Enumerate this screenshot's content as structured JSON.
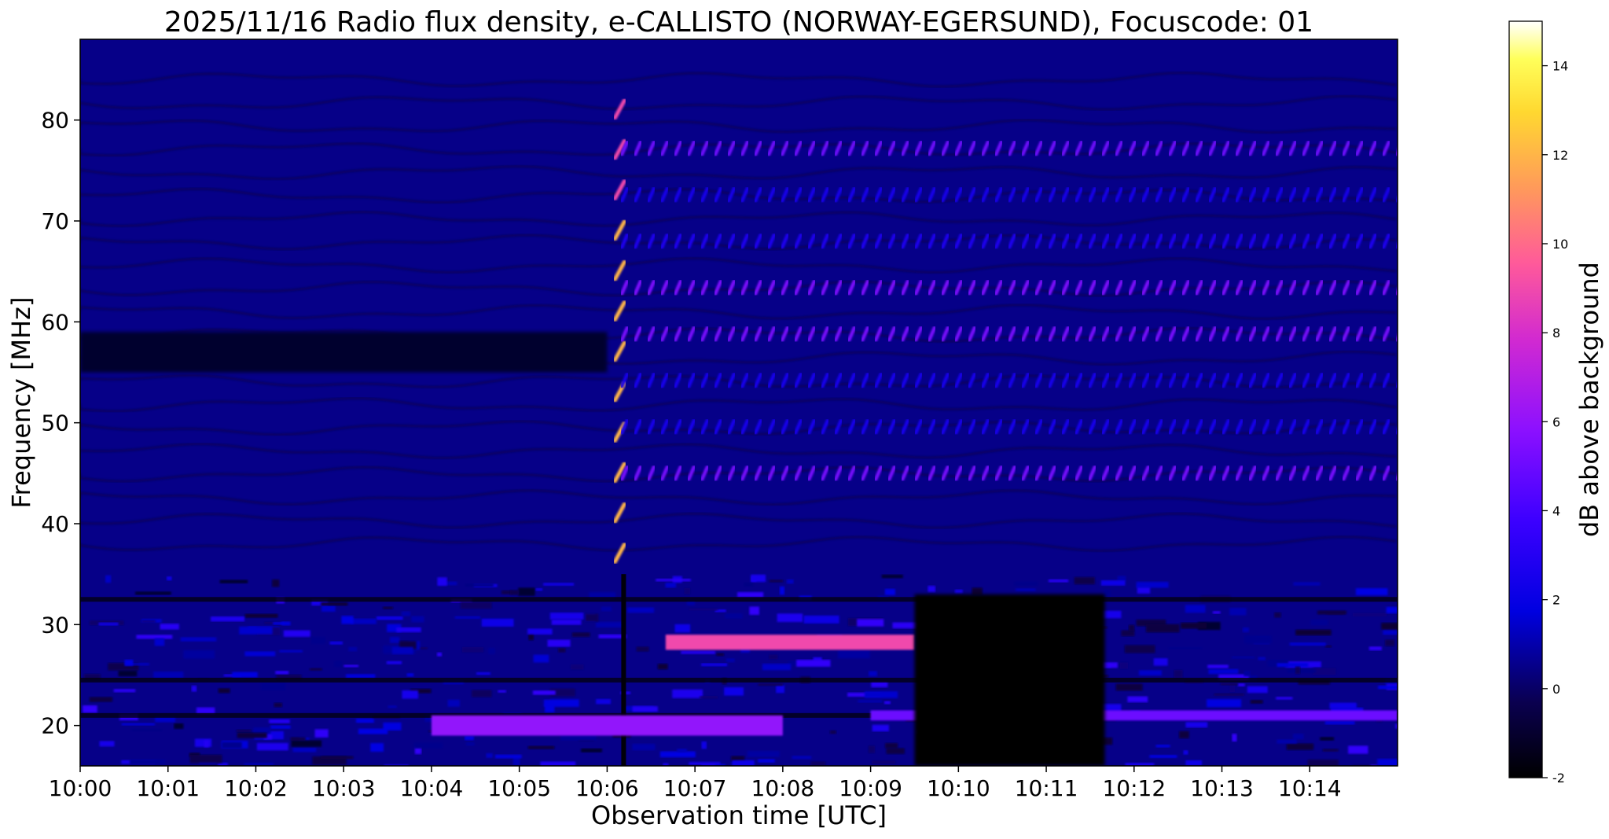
{
  "chart_data": {
    "type": "heatmap",
    "title": "2025/11/16  Radio flux density, e-CALLISTO (NORWAY-EGERSUND), Focuscode: 01",
    "xlabel": "Observation time [UTC]",
    "ylabel": "Frequency [MHz]",
    "x_range": [
      "10:00",
      "10:15"
    ],
    "ylim": [
      16,
      88
    ],
    "x_ticks": [
      "10:00",
      "10:01",
      "10:02",
      "10:03",
      "10:04",
      "10:05",
      "10:06",
      "10:07",
      "10:08",
      "10:09",
      "10:10",
      "10:11",
      "10:12",
      "10:13",
      "10:14"
    ],
    "y_ticks": [
      20,
      30,
      40,
      50,
      60,
      70,
      80
    ],
    "colorbar": {
      "label": "dB above background",
      "range": [
        -2,
        15
      ],
      "ticks": [
        -2,
        0,
        2,
        4,
        6,
        8,
        10,
        12,
        14
      ],
      "colormap": "gnuplot2"
    },
    "background_level_db": 0.5,
    "burst_onset_time": "10:06",
    "features": [
      {
        "t_start": "10:06:00",
        "t_end": "10:06:12",
        "f_low": 37,
        "f_high": 83,
        "db": 12
      },
      {
        "t_start": "10:06:10",
        "t_end": "10:15",
        "f_low": 45,
        "f_high": 80,
        "db": 4
      },
      {
        "t_start": "10:06:40",
        "t_end": "10:09:30",
        "f_low": 27.5,
        "f_high": 29,
        "db": 9
      },
      {
        "t_start": "10:04:00",
        "t_end": "10:08:00",
        "f_low": 19,
        "f_high": 21,
        "db": 6
      },
      {
        "t_start": "10:09:00",
        "t_end": "10:15",
        "f_low": 20.5,
        "f_high": 21.5,
        "db": 5
      },
      {
        "t_start": "10:00:00",
        "t_end": "10:06:00",
        "f_low": 55,
        "f_high": 59,
        "db": -1
      },
      {
        "t_start": "10:09:30",
        "t_end": "10:11:40",
        "f_low": 16,
        "f_high": 33,
        "db": -2
      }
    ]
  },
  "colors": {
    "background": "#ffffff",
    "axes_frame": "#000000",
    "colormap_stops": [
      "#000000",
      "#0000c8",
      "#3c00ff",
      "#a01ee6",
      "#ff5a9a",
      "#ffa850",
      "#ffff28",
      "#ffffff"
    ]
  }
}
